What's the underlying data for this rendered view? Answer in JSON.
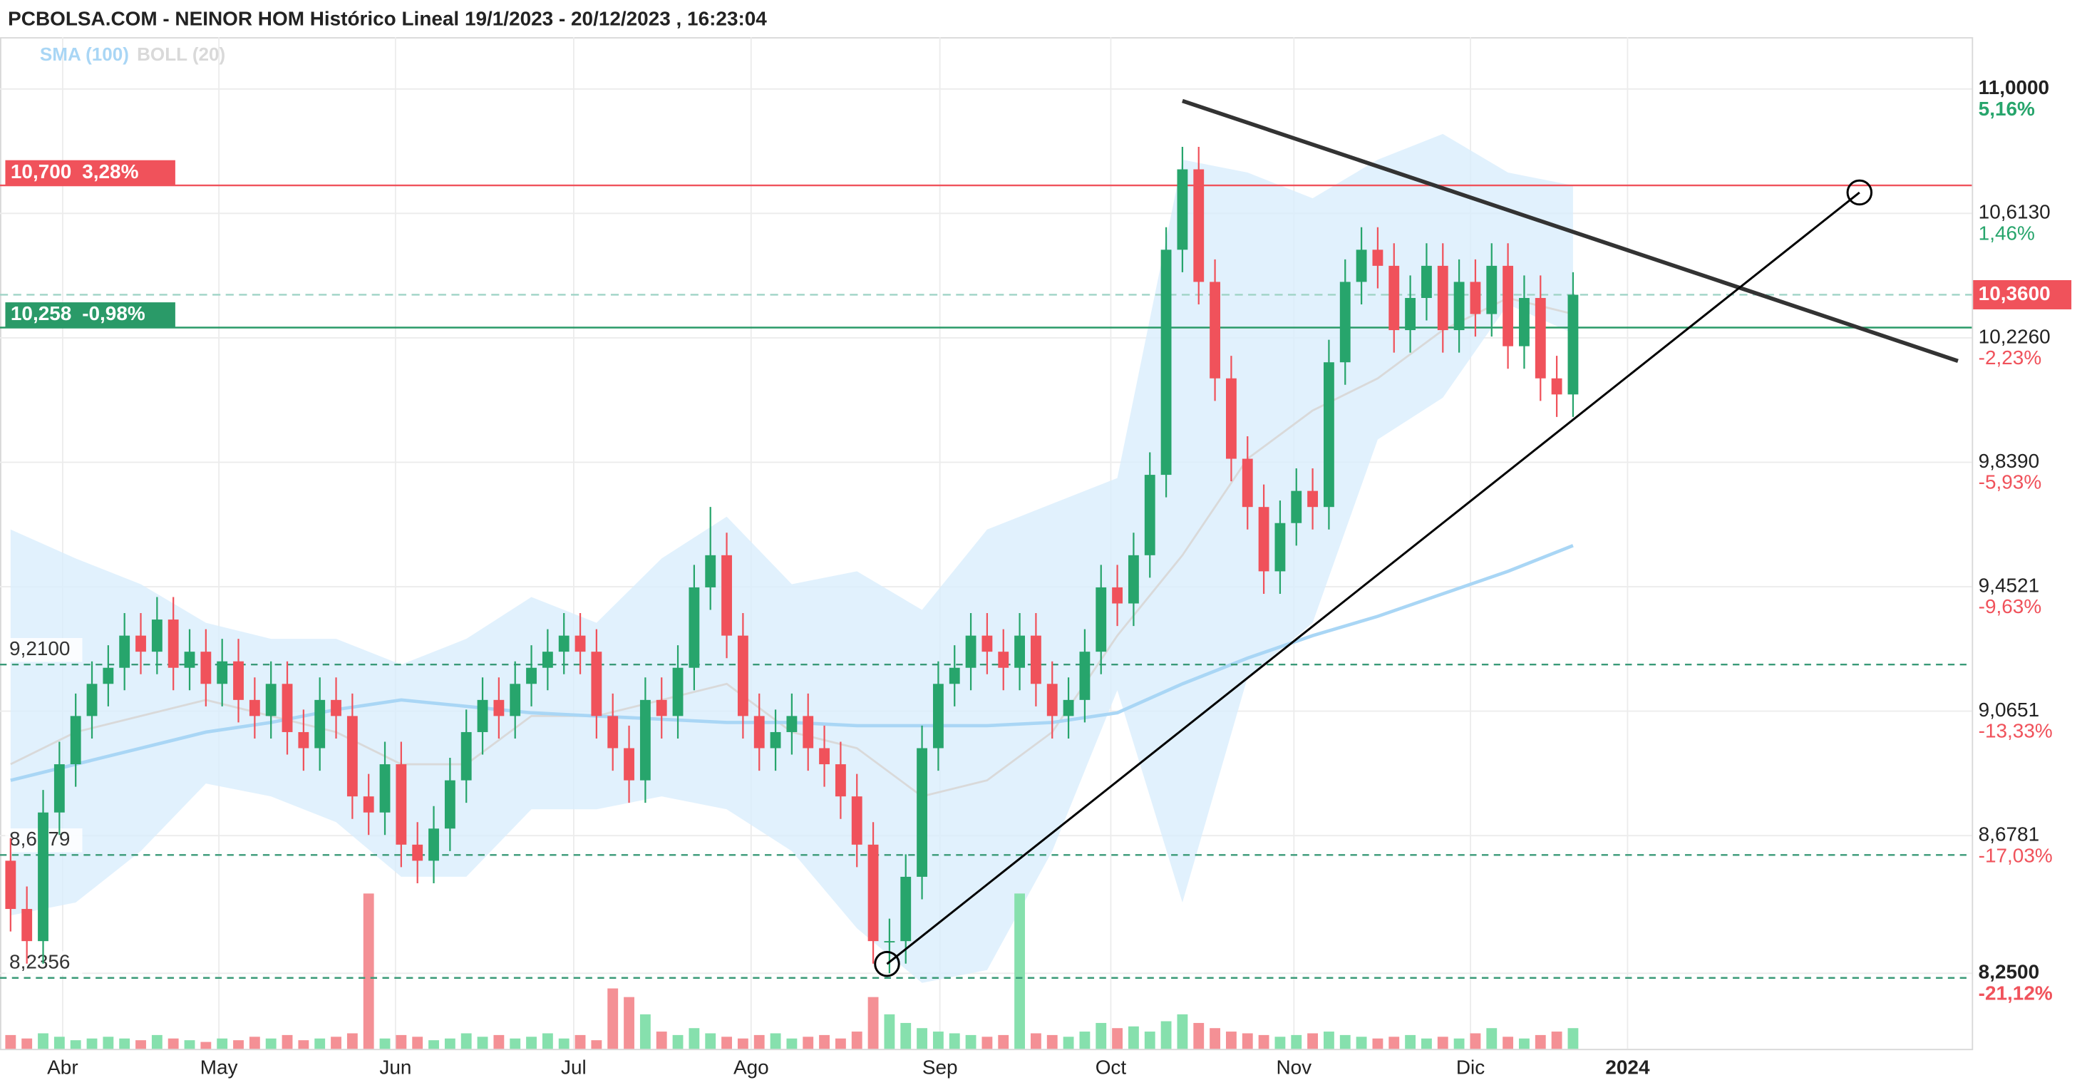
{
  "chart_data": {
    "type": "candlestick",
    "title": "PCBOLSA.COM - NEINOR HOM Histórico Lineal 19/1/2023 - 20/12/2023 , 16:23:04",
    "x": [
      0,
      2,
      4,
      6,
      8,
      10,
      12,
      14,
      16,
      18,
      20,
      22,
      24,
      26,
      28,
      30,
      32,
      34,
      36,
      38,
      40,
      42,
      44,
      46,
      48,
      50,
      52,
      54,
      56,
      58,
      60,
      62,
      64,
      66,
      68,
      70,
      72,
      74,
      76,
      78,
      80,
      82,
      84,
      86,
      88,
      90,
      92,
      94,
      96,
      98,
      100,
      102,
      104,
      106,
      108,
      110,
      112,
      114,
      116,
      118,
      120,
      122,
      124,
      126,
      128,
      130,
      132,
      134,
      136,
      138,
      140,
      142,
      144,
      146,
      148,
      150,
      152,
      154,
      156,
      158,
      160,
      162,
      164,
      166,
      168,
      170,
      172,
      174,
      176,
      178,
      180,
      182,
      184,
      186,
      188,
      190,
      192
    ],
    "open": [
      8.6,
      8.45,
      8.35,
      8.75,
      8.9,
      9.05,
      9.15,
      9.2,
      9.3,
      9.25,
      9.35,
      9.2,
      9.25,
      9.15,
      9.22,
      9.1,
      9.05,
      9.15,
      9.0,
      8.95,
      9.1,
      9.05,
      8.8,
      8.75,
      8.9,
      8.65,
      8.6,
      8.7,
      8.85,
      9.0,
      9.1,
      9.05,
      9.15,
      9.2,
      9.25,
      9.3,
      9.25,
      9.05,
      8.95,
      8.85,
      9.1,
      9.05,
      9.2,
      9.45,
      9.55,
      9.3,
      9.05,
      8.95,
      9.0,
      9.05,
      8.95,
      8.9,
      8.8,
      8.65,
      8.35,
      8.35,
      8.55,
      8.95,
      9.15,
      9.2,
      9.3,
      9.25,
      9.2,
      9.3,
      9.15,
      9.05,
      9.1,
      9.25,
      9.45,
      9.4,
      9.55,
      9.8,
      10.5,
      10.75,
      10.4,
      10.1,
      9.85,
      9.7,
      9.5,
      9.65,
      9.75,
      9.7,
      10.15,
      10.4,
      10.5,
      10.45,
      10.25,
      10.35,
      10.45,
      10.25,
      10.4,
      10.3,
      10.45,
      10.2,
      10.35,
      10.1,
      10.05
    ],
    "high": [
      8.67,
      8.52,
      8.82,
      8.97,
      9.12,
      9.22,
      9.27,
      9.37,
      9.37,
      9.42,
      9.42,
      9.32,
      9.32,
      9.29,
      9.29,
      9.17,
      9.22,
      9.22,
      9.07,
      9.17,
      9.17,
      9.12,
      8.87,
      8.97,
      8.97,
      8.72,
      8.77,
      8.92,
      9.07,
      9.17,
      9.17,
      9.22,
      9.27,
      9.32,
      9.37,
      9.37,
      9.32,
      9.12,
      9.02,
      9.17,
      9.17,
      9.27,
      9.52,
      9.7,
      9.62,
      9.37,
      9.12,
      9.07,
      9.12,
      9.12,
      9.02,
      8.97,
      8.87,
      8.72,
      8.42,
      8.62,
      9.02,
      9.22,
      9.27,
      9.37,
      9.37,
      9.32,
      9.37,
      9.37,
      9.22,
      9.17,
      9.32,
      9.52,
      9.52,
      9.62,
      9.87,
      10.57,
      10.82,
      10.82,
      10.47,
      10.17,
      9.92,
      9.77,
      9.72,
      9.82,
      9.82,
      10.22,
      10.47,
      10.57,
      10.57,
      10.52,
      10.42,
      10.52,
      10.52,
      10.47,
      10.47,
      10.52,
      10.52,
      10.42,
      10.42,
      10.17,
      10.43
    ],
    "low": [
      8.38,
      8.28,
      8.28,
      8.68,
      8.83,
      8.98,
      9.08,
      9.13,
      9.18,
      9.18,
      9.13,
      9.13,
      9.08,
      9.08,
      9.03,
      8.98,
      8.98,
      8.93,
      8.88,
      8.88,
      8.98,
      8.73,
      8.68,
      8.68,
      8.58,
      8.53,
      8.53,
      8.63,
      8.78,
      8.93,
      8.98,
      8.98,
      9.08,
      9.13,
      9.18,
      9.18,
      8.98,
      8.88,
      8.78,
      8.78,
      8.98,
      8.98,
      9.13,
      9.38,
      9.23,
      8.98,
      8.88,
      8.88,
      8.93,
      8.88,
      8.83,
      8.73,
      8.58,
      8.28,
      8.25,
      8.28,
      8.48,
      8.88,
      9.08,
      9.13,
      9.18,
      9.13,
      9.13,
      9.08,
      8.98,
      8.98,
      9.03,
      9.18,
      9.33,
      9.33,
      9.48,
      9.73,
      10.43,
      10.33,
      10.03,
      9.78,
      9.63,
      9.43,
      9.43,
      9.58,
      9.63,
      9.63,
      10.08,
      10.33,
      10.38,
      10.18,
      10.18,
      10.28,
      10.18,
      10.18,
      10.23,
      10.23,
      10.13,
      10.13,
      10.03,
      9.98,
      9.98
    ],
    "close": [
      8.45,
      8.35,
      8.75,
      8.9,
      9.05,
      9.15,
      9.2,
      9.3,
      9.25,
      9.35,
      9.2,
      9.25,
      9.15,
      9.22,
      9.1,
      9.05,
      9.15,
      9.0,
      8.95,
      9.1,
      9.05,
      8.8,
      8.75,
      8.9,
      8.65,
      8.6,
      8.7,
      8.85,
      9.0,
      9.1,
      9.05,
      9.15,
      9.2,
      9.25,
      9.3,
      9.25,
      9.05,
      8.95,
      8.85,
      9.1,
      9.05,
      9.2,
      9.45,
      9.55,
      9.3,
      9.05,
      8.95,
      9.0,
      9.05,
      8.95,
      8.9,
      8.8,
      8.65,
      8.35,
      8.35,
      8.55,
      8.95,
      9.15,
      9.2,
      9.3,
      9.25,
      9.2,
      9.3,
      9.15,
      9.05,
      9.1,
      9.25,
      9.45,
      9.4,
      9.55,
      9.8,
      10.5,
      10.75,
      10.4,
      10.1,
      9.85,
      9.7,
      9.5,
      9.65,
      9.75,
      9.7,
      10.15,
      10.4,
      10.5,
      10.45,
      10.25,
      10.35,
      10.45,
      10.25,
      10.4,
      10.3,
      10.45,
      10.2,
      10.35,
      10.1,
      10.05,
      10.36
    ],
    "up_color": "#27a56c",
    "down_color": "#f0525b",
    "volume": [
      80,
      60,
      90,
      70,
      50,
      60,
      70,
      60,
      50,
      80,
      60,
      50,
      40,
      60,
      50,
      70,
      60,
      80,
      50,
      60,
      70,
      90,
      900,
      60,
      80,
      70,
      50,
      60,
      90,
      70,
      80,
      60,
      70,
      90,
      60,
      80,
      50,
      350,
      300,
      200,
      100,
      80,
      120,
      90,
      70,
      60,
      80,
      90,
      60,
      70,
      80,
      60,
      100,
      300,
      200,
      150,
      120,
      100,
      90,
      80,
      70,
      80,
      900,
      90,
      80,
      70,
      100,
      150,
      120,
      130,
      100,
      160,
      200,
      150,
      120,
      100,
      90,
      80,
      70,
      80,
      90,
      100,
      80,
      70,
      60,
      70,
      80,
      60,
      70,
      60,
      90,
      120,
      70,
      60,
      80,
      100,
      120
    ],
    "volume_ylim": [
      0,
      1000
    ],
    "volume_up_color": "#86e0ad",
    "volume_down_color": "#f49095",
    "xlim": [
      -1.3,
      241
    ],
    "xticks": [
      {
        "value": 6.4,
        "label": "Abr"
      },
      {
        "value": 25.6,
        "label": "May"
      },
      {
        "value": 47.3,
        "label": "Jun"
      },
      {
        "value": 69.2,
        "label": "Jul"
      },
      {
        "value": 91,
        "label": "Ago"
      },
      {
        "value": 114.2,
        "label": "Sep"
      },
      {
        "value": 135.2,
        "label": "Oct"
      },
      {
        "value": 157.7,
        "label": "Nov"
      },
      {
        "value": 179.4,
        "label": "Dic"
      },
      {
        "value": 198.7,
        "label": "2024"
      }
    ],
    "ylim": [
      8.015,
      11.161
    ],
    "yticks": [
      {
        "value": 11,
        "label": "11,0000",
        "pct": "5,16%"
      },
      {
        "value": 10.613,
        "label": "10,6130",
        "pct": "1,46%"
      },
      {
        "value": 10.226,
        "label": "10,2260",
        "pct": "-2,23%"
      },
      {
        "value": 9.839,
        "label": "9,8390",
        "pct": "-5,93%"
      },
      {
        "value": 9.4521,
        "label": "9,4521",
        "pct": "-9,63%"
      },
      {
        "value": 9.0651,
        "label": "9,0651",
        "pct": "-13,33%"
      },
      {
        "value": 8.6781,
        "label": "8,6781",
        "pct": "-17,03%"
      },
      {
        "value": 8.25,
        "label": "8,2500",
        "pct": "-21,12%"
      }
    ],
    "grid": true,
    "indicators": {
      "x": [
        0,
        8,
        16,
        24,
        32,
        40,
        48,
        56,
        64,
        72,
        80,
        88,
        96,
        104,
        112,
        120,
        128,
        136,
        144,
        152,
        160,
        168,
        176,
        184,
        192
      ],
      "sma": {
        "name": "SMA (100)",
        "color": "#a9d6f5",
        "values": [
          8.85,
          8.9,
          8.95,
          9.0,
          9.03,
          9.07,
          9.1,
          9.08,
          9.06,
          9.05,
          9.04,
          9.03,
          9.03,
          9.02,
          9.02,
          9.02,
          9.03,
          9.06,
          9.15,
          9.23,
          9.3,
          9.36,
          9.43,
          9.5,
          9.58
        ]
      },
      "boll": {
        "name": "BOLL (20)",
        "color": "#d9d9d9",
        "fill": "#d9edfc",
        "upper": [
          9.63,
          9.54,
          9.46,
          9.34,
          9.29,
          9.29,
          9.21,
          9.29,
          9.42,
          9.34,
          9.54,
          9.67,
          9.46,
          9.5,
          9.38,
          9.63,
          9.71,
          9.79,
          10.78,
          10.74,
          10.66,
          10.78,
          10.86,
          10.74,
          10.7
        ],
        "middle": [
          8.9,
          9.0,
          9.05,
          9.1,
          9.05,
          9.0,
          8.9,
          8.9,
          9.05,
          9.05,
          9.1,
          9.15,
          9.0,
          8.95,
          8.8,
          8.85,
          9.0,
          9.3,
          9.55,
          9.85,
          10.0,
          10.1,
          10.25,
          10.35,
          10.3
        ],
        "lower": [
          8.43,
          8.47,
          8.63,
          8.84,
          8.8,
          8.72,
          8.55,
          8.55,
          8.76,
          8.76,
          8.8,
          8.76,
          8.63,
          8.39,
          8.22,
          8.26,
          8.63,
          9.13,
          8.47,
          9.17,
          9.34,
          9.91,
          10.04,
          10.33,
          10.24
        ]
      }
    },
    "levels": [
      {
        "value": 10.7,
        "label": "10,700",
        "pct": "3,28%",
        "color": "#f0525b",
        "style": "solid"
      },
      {
        "value": 10.258,
        "label": "10,258",
        "pct": "-0,98%",
        "color": "#2a9a68",
        "style": "solid"
      },
      {
        "value": 9.21,
        "label": "9,2100",
        "color": "#3a9a78",
        "style": "dashed"
      },
      {
        "value": 8.6179,
        "label": "8,6179",
        "color": "#3a9a78",
        "style": "dashed"
      },
      {
        "value": 8.2356,
        "label": "8,2356",
        "color": "#3a9a78",
        "style": "dashed"
      }
    ],
    "last_price": {
      "value": 10.36,
      "label": "10,3600",
      "color": "#f0525b",
      "line_color": "#9fd4c6"
    },
    "trendlines": [
      {
        "x": [
          144,
          239.3
        ],
        "y": [
          10.963,
          10.154
        ],
        "color": "#333333",
        "width": 3,
        "endpoints": false
      },
      {
        "x": [
          107.7,
          227.2
        ],
        "y": [
          8.279,
          10.678
        ],
        "color": "#000000",
        "width": 1.6,
        "endpoints": true
      }
    ]
  }
}
